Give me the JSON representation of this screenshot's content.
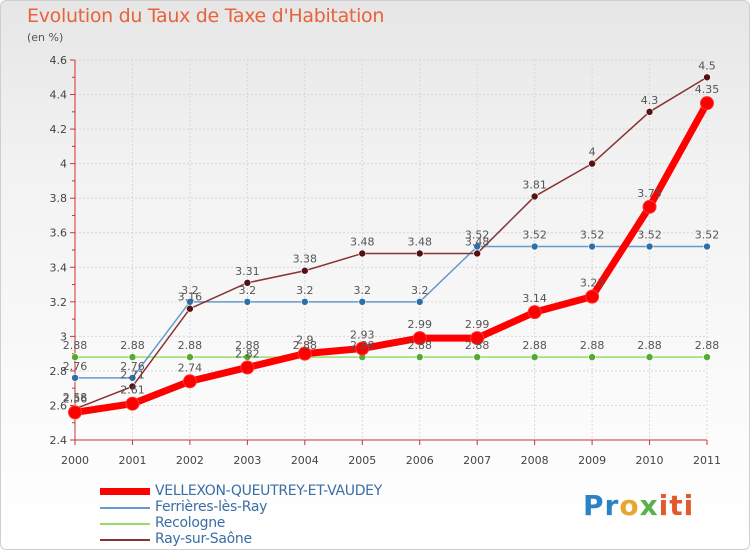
{
  "title": "Evolution du Taux de Taxe d'Habitation",
  "unit": "(en %)",
  "brand": {
    "part1": "Pr",
    "part2": "o",
    "part3": "x",
    "part4": "iti"
  },
  "chart_data": {
    "type": "line",
    "x": [
      "2000",
      "2001",
      "2002",
      "2003",
      "2004",
      "2005",
      "2006",
      "2007",
      "2008",
      "2009",
      "2010",
      "2011"
    ],
    "ylim": [
      2.4,
      4.6
    ],
    "yticks": [
      "2.4",
      "2.6",
      "2.8",
      "3",
      "3.2",
      "3.4",
      "3.6",
      "3.8",
      "4",
      "4.2",
      "4.4",
      "4.6"
    ],
    "grid": true,
    "legend_position": "bottom-left",
    "series": [
      {
        "name": "VELLEXON-QUEUTREY-ET-VAUDEY",
        "color": "#ff0000",
        "values": [
          2.56,
          2.61,
          2.74,
          2.82,
          2.9,
          2.93,
          2.99,
          2.99,
          3.14,
          3.23,
          3.75,
          4.35
        ],
        "labels": [
          "2.56",
          "2.61",
          "2.74",
          "2.82",
          "2.9",
          "2.93",
          "2.99",
          "2.99",
          "3.14",
          "3.23",
          "3.75",
          "4.35"
        ]
      },
      {
        "name": "Ferrières-lès-Ray",
        "color": "#6699cc",
        "values": [
          2.76,
          2.76,
          3.2,
          3.2,
          3.2,
          3.2,
          3.2,
          3.52,
          3.52,
          3.52,
          3.52,
          3.52
        ],
        "labels": [
          "2.76",
          "2.76",
          "3.2",
          "3.2",
          "3.2",
          "3.2",
          "3.2",
          "3.52",
          "3.52",
          "3.52",
          "3.52",
          "3.52"
        ]
      },
      {
        "name": "Recologne",
        "color": "#99dd66",
        "values": [
          2.88,
          2.88,
          2.88,
          2.88,
          2.88,
          2.88,
          2.88,
          2.88,
          2.88,
          2.88,
          2.88,
          2.88
        ],
        "labels": [
          "2.88",
          "2.88",
          "2.88",
          "2.88",
          "2.88",
          "2.88",
          "2.88",
          "2.88",
          "2.88",
          "2.88",
          "2.88",
          "2.88"
        ]
      },
      {
        "name": "Ray-sur-Saône",
        "color": "#883333",
        "values": [
          2.58,
          2.71,
          3.16,
          3.31,
          3.38,
          3.48,
          3.48,
          3.48,
          3.81,
          4,
          4.3,
          4.5
        ],
        "labels": [
          "2.58",
          "2.71",
          "3.16",
          "3.31",
          "3.38",
          "3.48",
          "3.48",
          "3.48",
          "3.81",
          "4",
          "4.3",
          "4.5"
        ]
      }
    ]
  }
}
